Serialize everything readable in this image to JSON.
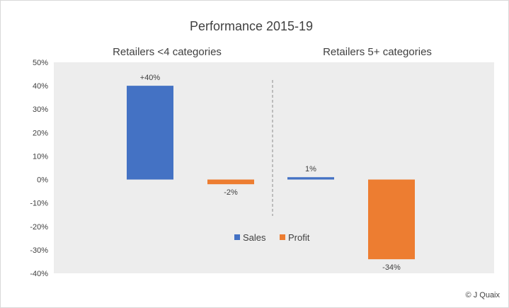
{
  "chart_data": {
    "type": "bar",
    "title": "Performance 2015-19",
    "groups": [
      "Retailers <4 categories",
      "Retailers 5+ categories"
    ],
    "series": [
      {
        "name": "Sales",
        "color": "#4472C4",
        "values": [
          40,
          1
        ],
        "labels": [
          "+40%",
          "1%"
        ]
      },
      {
        "name": "Profit",
        "color": "#ED7D31",
        "values": [
          -2,
          -34
        ],
        "labels": [
          "-2%",
          "-34%"
        ]
      }
    ],
    "ylim": [
      -40,
      50
    ],
    "yticks": [
      "50%",
      "40%",
      "30%",
      "20%",
      "10%",
      "0%",
      "-10%",
      "-20%",
      "-30%",
      "-40%"
    ],
    "legend_position": "center-bottom",
    "plot_background": "#EDEDED",
    "group_divider": "dashed"
  },
  "credit": "© J Quaix"
}
